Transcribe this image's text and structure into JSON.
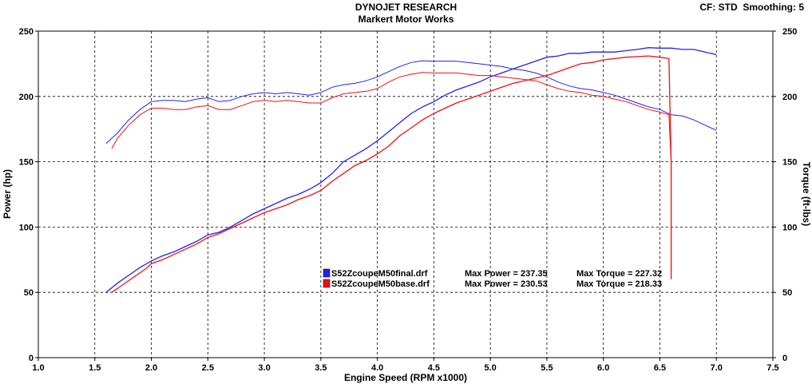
{
  "header": {
    "title": "DYNOJET RESEARCH",
    "subtitle": "Markert Motor Works",
    "cf_label": "CF: STD",
    "smoothing_label": "Smoothing: 5"
  },
  "chart_data": {
    "type": "line",
    "xlabel": "Engine Speed (RPM x1000)",
    "ylabel": "Power (hp)",
    "y2label": "Torque (ft-lbs)",
    "xlim": [
      1.0,
      7.5
    ],
    "ylim": [
      0,
      250
    ],
    "y2lim": [
      0,
      250
    ],
    "x_ticks": [
      "1.0",
      "1.5",
      "2.0",
      "2.5",
      "3.0",
      "3.5",
      "4.0",
      "4.5",
      "5.0",
      "5.5",
      "6.0",
      "6.5",
      "7.0",
      "7.5"
    ],
    "y_ticks": [
      "0",
      "50",
      "100",
      "150",
      "200",
      "250"
    ],
    "y2_ticks": [
      "0",
      "50",
      "100",
      "150",
      "200",
      "250"
    ],
    "grid": true,
    "legend": [
      {
        "file": "S52ZcoupeM50final.drf",
        "max_power_label": "Max Power = 237.35",
        "max_torque_label": "Max Torque = 227.32",
        "color": "#2222ee"
      },
      {
        "file": "S52ZcoupeM50base.drf",
        "max_power_label": "Max Power = 230.53",
        "max_torque_label": "Max Torque = 218.33",
        "color": "#ee1111"
      }
    ],
    "series": [
      {
        "name": "S52ZcoupeM50final.drf",
        "measure": "power",
        "color": "#2222ee",
        "points": [
          [
            1.6,
            50
          ],
          [
            1.7,
            57
          ],
          [
            1.8,
            63
          ],
          [
            1.9,
            69
          ],
          [
            2.0,
            74
          ],
          [
            2.1,
            78
          ],
          [
            2.2,
            81
          ],
          [
            2.3,
            85
          ],
          [
            2.4,
            89
          ],
          [
            2.5,
            94
          ],
          [
            2.6,
            96
          ],
          [
            2.7,
            100
          ],
          [
            2.8,
            105
          ],
          [
            2.9,
            110
          ],
          [
            3.0,
            114
          ],
          [
            3.1,
            118
          ],
          [
            3.2,
            122
          ],
          [
            3.3,
            125
          ],
          [
            3.4,
            129
          ],
          [
            3.5,
            134
          ],
          [
            3.6,
            141
          ],
          [
            3.7,
            150
          ],
          [
            3.8,
            155
          ],
          [
            3.9,
            160
          ],
          [
            4.0,
            166
          ],
          [
            4.1,
            173
          ],
          [
            4.2,
            180
          ],
          [
            4.3,
            187
          ],
          [
            4.4,
            192
          ],
          [
            4.5,
            196
          ],
          [
            4.6,
            201
          ],
          [
            4.7,
            205
          ],
          [
            4.8,
            208
          ],
          [
            4.9,
            211
          ],
          [
            5.0,
            215
          ],
          [
            5.1,
            218
          ],
          [
            5.2,
            221
          ],
          [
            5.3,
            224
          ],
          [
            5.4,
            227
          ],
          [
            5.5,
            230
          ],
          [
            5.6,
            231
          ],
          [
            5.7,
            233
          ],
          [
            5.8,
            233
          ],
          [
            5.9,
            234
          ],
          [
            6.0,
            234
          ],
          [
            6.1,
            234
          ],
          [
            6.2,
            235
          ],
          [
            6.3,
            236
          ],
          [
            6.4,
            237.35
          ],
          [
            6.5,
            237
          ],
          [
            6.55,
            237
          ],
          [
            6.6,
            237
          ],
          [
            6.7,
            236
          ],
          [
            6.8,
            236
          ],
          [
            6.9,
            234
          ],
          [
            7.0,
            232
          ]
        ]
      },
      {
        "name": "S52ZcoupeM50final.drf",
        "measure": "torque",
        "color": "#2222ee",
        "points": [
          [
            1.6,
            164
          ],
          [
            1.7,
            172
          ],
          [
            1.8,
            182
          ],
          [
            1.9,
            190
          ],
          [
            2.0,
            196
          ],
          [
            2.1,
            197
          ],
          [
            2.2,
            197
          ],
          [
            2.3,
            196
          ],
          [
            2.4,
            198
          ],
          [
            2.5,
            199
          ],
          [
            2.6,
            196
          ],
          [
            2.7,
            197
          ],
          [
            2.8,
            200
          ],
          [
            2.9,
            202
          ],
          [
            3.0,
            203
          ],
          [
            3.1,
            202
          ],
          [
            3.2,
            203
          ],
          [
            3.3,
            202
          ],
          [
            3.4,
            201
          ],
          [
            3.5,
            203
          ],
          [
            3.6,
            207
          ],
          [
            3.7,
            209
          ],
          [
            3.8,
            210
          ],
          [
            3.9,
            212
          ],
          [
            4.0,
            215
          ],
          [
            4.1,
            219
          ],
          [
            4.2,
            223
          ],
          [
            4.3,
            226
          ],
          [
            4.4,
            227.32
          ],
          [
            4.5,
            227
          ],
          [
            4.6,
            227
          ],
          [
            4.7,
            227
          ],
          [
            4.8,
            226
          ],
          [
            4.9,
            225
          ],
          [
            5.0,
            224
          ],
          [
            5.1,
            223
          ],
          [
            5.2,
            221
          ],
          [
            5.3,
            220
          ],
          [
            5.4,
            218
          ],
          [
            5.5,
            215
          ],
          [
            5.6,
            211
          ],
          [
            5.7,
            208
          ],
          [
            5.8,
            206
          ],
          [
            5.9,
            205
          ],
          [
            6.0,
            203
          ],
          [
            6.1,
            201
          ],
          [
            6.2,
            198
          ],
          [
            6.3,
            195
          ],
          [
            6.4,
            192
          ],
          [
            6.5,
            190
          ],
          [
            6.55,
            188
          ],
          [
            6.6,
            186
          ],
          [
            6.7,
            185
          ],
          [
            6.8,
            182
          ],
          [
            6.9,
            178
          ],
          [
            7.0,
            174
          ]
        ]
      },
      {
        "name": "S52ZcoupeM50base.drf",
        "measure": "power",
        "color": "#ee1111",
        "points": [
          [
            1.65,
            50
          ],
          [
            1.75,
            56
          ],
          [
            1.85,
            62
          ],
          [
            1.95,
            68
          ],
          [
            2.0,
            72
          ],
          [
            2.1,
            75
          ],
          [
            2.2,
            79
          ],
          [
            2.3,
            83
          ],
          [
            2.4,
            87
          ],
          [
            2.5,
            92
          ],
          [
            2.6,
            95
          ],
          [
            2.7,
            99
          ],
          [
            2.8,
            103
          ],
          [
            2.9,
            107
          ],
          [
            3.0,
            111
          ],
          [
            3.1,
            114
          ],
          [
            3.2,
            117
          ],
          [
            3.3,
            121
          ],
          [
            3.4,
            124
          ],
          [
            3.5,
            128
          ],
          [
            3.6,
            135
          ],
          [
            3.7,
            141
          ],
          [
            3.8,
            147
          ],
          [
            3.9,
            151
          ],
          [
            4.0,
            156
          ],
          [
            4.1,
            162
          ],
          [
            4.2,
            170
          ],
          [
            4.3,
            176
          ],
          [
            4.4,
            182
          ],
          [
            4.5,
            187
          ],
          [
            4.6,
            191
          ],
          [
            4.7,
            195
          ],
          [
            4.8,
            198
          ],
          [
            4.9,
            201
          ],
          [
            5.0,
            204
          ],
          [
            5.1,
            207
          ],
          [
            5.2,
            210
          ],
          [
            5.3,
            212
          ],
          [
            5.4,
            214
          ],
          [
            5.5,
            216
          ],
          [
            5.6,
            219
          ],
          [
            5.7,
            222
          ],
          [
            5.8,
            225
          ],
          [
            5.9,
            226
          ],
          [
            6.0,
            228
          ],
          [
            6.1,
            229
          ],
          [
            6.2,
            230
          ],
          [
            6.3,
            230.53
          ],
          [
            6.4,
            231
          ],
          [
            6.5,
            230
          ],
          [
            6.58,
            229
          ],
          [
            6.6,
            150
          ],
          [
            6.6,
            60
          ]
        ]
      },
      {
        "name": "S52ZcoupeM50base.drf",
        "measure": "torque",
        "color": "#ee1111",
        "points": [
          [
            1.65,
            160
          ],
          [
            1.7,
            168
          ],
          [
            1.8,
            178
          ],
          [
            1.9,
            186
          ],
          [
            2.0,
            191
          ],
          [
            2.1,
            191
          ],
          [
            2.2,
            190
          ],
          [
            2.3,
            190
          ],
          [
            2.4,
            192
          ],
          [
            2.5,
            193
          ],
          [
            2.6,
            190
          ],
          [
            2.7,
            190
          ],
          [
            2.8,
            193
          ],
          [
            2.9,
            196
          ],
          [
            3.0,
            197
          ],
          [
            3.1,
            196
          ],
          [
            3.2,
            197
          ],
          [
            3.3,
            196
          ],
          [
            3.4,
            195
          ],
          [
            3.5,
            195
          ],
          [
            3.6,
            199
          ],
          [
            3.7,
            202
          ],
          [
            3.8,
            203
          ],
          [
            3.9,
            204
          ],
          [
            4.0,
            206
          ],
          [
            4.1,
            211
          ],
          [
            4.2,
            215
          ],
          [
            4.3,
            217
          ],
          [
            4.4,
            218.33
          ],
          [
            4.5,
            218
          ],
          [
            4.6,
            218
          ],
          [
            4.7,
            218
          ],
          [
            4.8,
            217
          ],
          [
            4.9,
            216
          ],
          [
            5.0,
            216
          ],
          [
            5.1,
            215
          ],
          [
            5.2,
            214
          ],
          [
            5.3,
            213
          ],
          [
            5.4,
            212
          ],
          [
            5.5,
            209
          ],
          [
            5.6,
            206
          ],
          [
            5.7,
            204
          ],
          [
            5.8,
            203
          ],
          [
            5.9,
            201
          ],
          [
            6.0,
            200
          ],
          [
            6.1,
            198
          ],
          [
            6.2,
            196
          ],
          [
            6.3,
            193
          ],
          [
            6.4,
            190
          ],
          [
            6.5,
            188
          ],
          [
            6.58,
            186
          ],
          [
            6.6,
            150
          ],
          [
            6.6,
            60
          ]
        ]
      }
    ]
  }
}
